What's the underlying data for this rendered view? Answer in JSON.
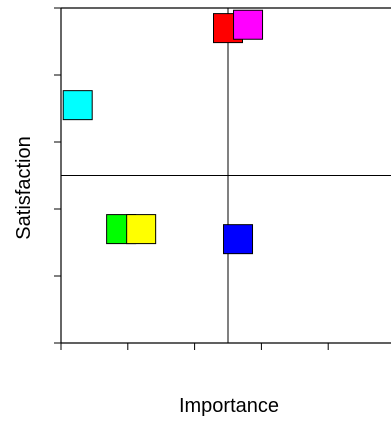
{
  "chart_data": {
    "type": "scatter",
    "title": "",
    "xlabel": "Importance",
    "ylabel": "Satisfaction",
    "xlim": [
      0,
      10
    ],
    "ylim": [
      0,
      10
    ],
    "x_ticks": [
      0,
      2,
      4,
      6,
      8,
      10
    ],
    "y_ticks": [
      0,
      2,
      4,
      6,
      8,
      10
    ],
    "tick_labels_shown": false,
    "grid": false,
    "reference_lines": {
      "x": 5,
      "y": 5
    },
    "marker": "square",
    "points": [
      {
        "x": 5.0,
        "y": 9.4,
        "color": "#ff0000"
      },
      {
        "x": 5.6,
        "y": 9.5,
        "color": "#ff00ff"
      },
      {
        "x": 0.5,
        "y": 7.1,
        "color": "#00ffff"
      },
      {
        "x": 1.8,
        "y": 3.4,
        "color": "#00ff00"
      },
      {
        "x": 2.4,
        "y": 3.4,
        "color": "#ffff00"
      },
      {
        "x": 5.3,
        "y": 3.1,
        "color": "#0000ff"
      }
    ]
  }
}
